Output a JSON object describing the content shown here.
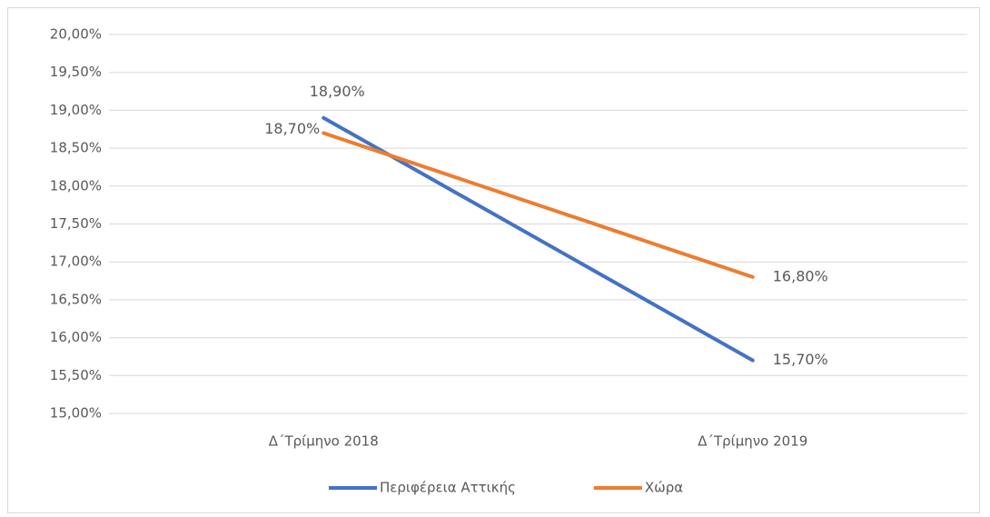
{
  "chart_data": {
    "type": "line",
    "categories": [
      "Δ΄Τρίμηνο 2018",
      "Δ΄Τρίμηνο 2019"
    ],
    "series": [
      {
        "name": "Περιφέρεια Αττικής",
        "color": "#4472c4",
        "values": [
          18.9,
          15.7
        ],
        "value_labels": [
          "18,90%",
          "15,70%"
        ]
      },
      {
        "name": "Χώρα",
        "color": "#ed7d31",
        "values": [
          18.7,
          16.8
        ],
        "value_labels": [
          "18,70%",
          "16,80%"
        ]
      }
    ],
    "ylim": [
      15,
      20
    ],
    "yticks": [
      {
        "value": 15,
        "label": "15,00%"
      },
      {
        "value": 15.5,
        "label": "15,50%"
      },
      {
        "value": 16,
        "label": "16,00%"
      },
      {
        "value": 16.5,
        "label": "16,50%"
      },
      {
        "value": 17,
        "label": "17,00%"
      },
      {
        "value": 17.5,
        "label": "17,50%"
      },
      {
        "value": 18,
        "label": "18,00%"
      },
      {
        "value": 18.5,
        "label": "18,50%"
      },
      {
        "value": 19,
        "label": "19,00%"
      },
      {
        "value": 19.5,
        "label": "19,50%"
      },
      {
        "value": 20,
        "label": "20,00%"
      }
    ],
    "grid": true,
    "legend": "bottom"
  }
}
